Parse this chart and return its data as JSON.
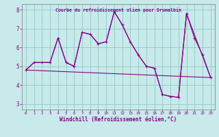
{
  "title": "Courbe du refroidissement olien pour Drumalbin",
  "xlabel": "Windchill (Refroidissement éolien,°C)",
  "xlim": [
    -0.5,
    23.5
  ],
  "ylim": [
    2.7,
    8.3
  ],
  "xticks": [
    0,
    1,
    2,
    3,
    4,
    5,
    6,
    7,
    8,
    9,
    10,
    11,
    12,
    13,
    14,
    15,
    16,
    17,
    18,
    19,
    20,
    21,
    22,
    23
  ],
  "yticks": [
    3,
    4,
    5,
    6,
    7,
    8
  ],
  "bg_color": "#c8eaea",
  "line_color": "#880088",
  "grid_color": "#99cccc",
  "line1_x": [
    0,
    1,
    2,
    3,
    4,
    5,
    6,
    7,
    8,
    9,
    10,
    11,
    12,
    13,
    14,
    15,
    16,
    17,
    18,
    19,
    20,
    21,
    22,
    23
  ],
  "line1_y": [
    4.8,
    5.2,
    5.2,
    5.2,
    6.5,
    5.2,
    5.0,
    6.8,
    6.7,
    6.2,
    6.3,
    7.9,
    7.2,
    6.3,
    5.6,
    5.0,
    4.9,
    3.5,
    3.4,
    3.35,
    7.8,
    6.5,
    5.6,
    4.4
  ],
  "line2_x": [
    0,
    1,
    2,
    3,
    4,
    5,
    6,
    7,
    8,
    9,
    10,
    11,
    12,
    13,
    14,
    15,
    16,
    17,
    18,
    19,
    20,
    23
  ],
  "line2_y": [
    4.8,
    5.2,
    5.2,
    5.2,
    6.5,
    5.2,
    5.0,
    6.8,
    6.7,
    6.2,
    6.3,
    7.9,
    7.2,
    6.3,
    5.6,
    5.0,
    4.9,
    3.5,
    3.4,
    3.35,
    7.8,
    4.4
  ],
  "line3_x": [
    0,
    23
  ],
  "line3_y": [
    4.8,
    4.4
  ]
}
